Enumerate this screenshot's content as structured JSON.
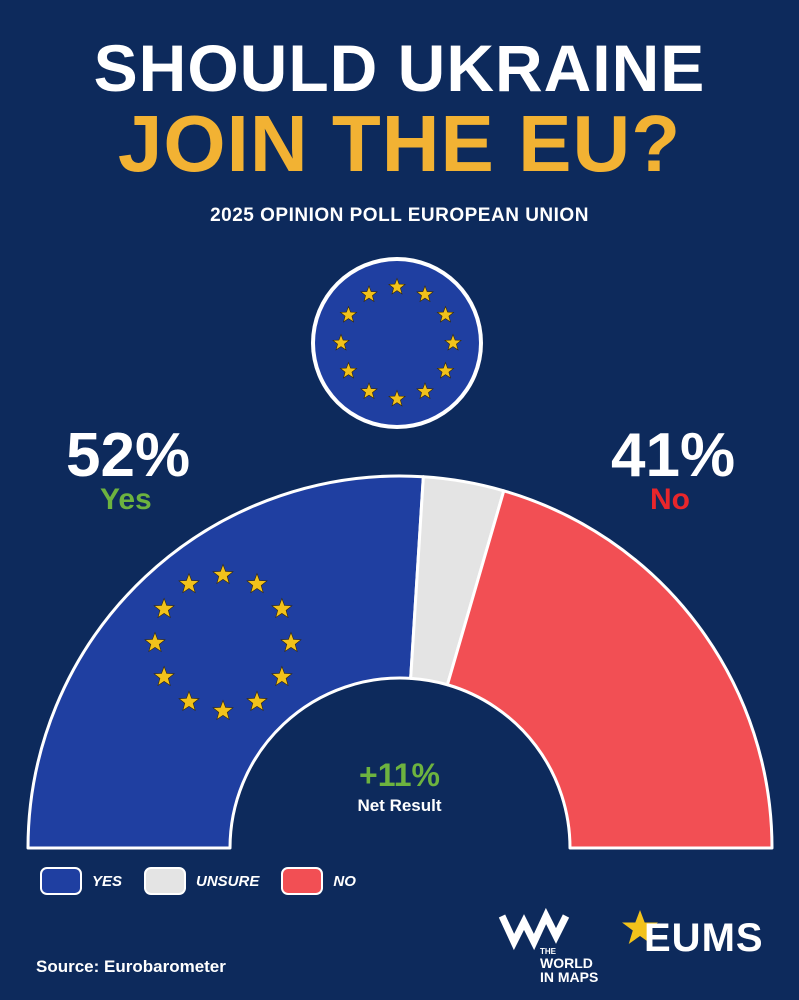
{
  "header": {
    "title_line1": "SHOULD UKRAINE",
    "title_line2": "JOIN THE EU?",
    "subtitle": "2025 OPINION POLL EUROPEAN UNION"
  },
  "chart_data": {
    "type": "semi-donut",
    "series": [
      {
        "label": "YES",
        "value": 52,
        "color": "#1f3fa1"
      },
      {
        "label": "UNSURE",
        "value": 7,
        "color": "#e4e4e4"
      },
      {
        "label": "NO",
        "value": 41,
        "color": "#f24f54"
      }
    ],
    "callouts": {
      "yes_pct": "52%",
      "yes_label": "Yes",
      "no_pct": "41%",
      "no_label": "No"
    },
    "net_value": "+11%",
    "net_label": "Net Result",
    "legend_placement": "bottom-left"
  },
  "colors": {
    "background": "#0d2a5c",
    "title_accent": "#f2b233",
    "yes": "#1f3fa1",
    "unsure": "#e4e4e4",
    "no": "#f24f54",
    "yes_text": "#6db33f",
    "no_text": "#e8262b",
    "star": "#f2c21b"
  },
  "icons": {
    "flag": "eu-flag-icon",
    "stars": "eu-stars-ring-icon"
  },
  "footer": {
    "source": "Source: Eurobarometer",
    "wim_small": "THE",
    "wim_line1": "WORLD",
    "wim_line2": "IN MAPS",
    "eums": "EUMS"
  }
}
